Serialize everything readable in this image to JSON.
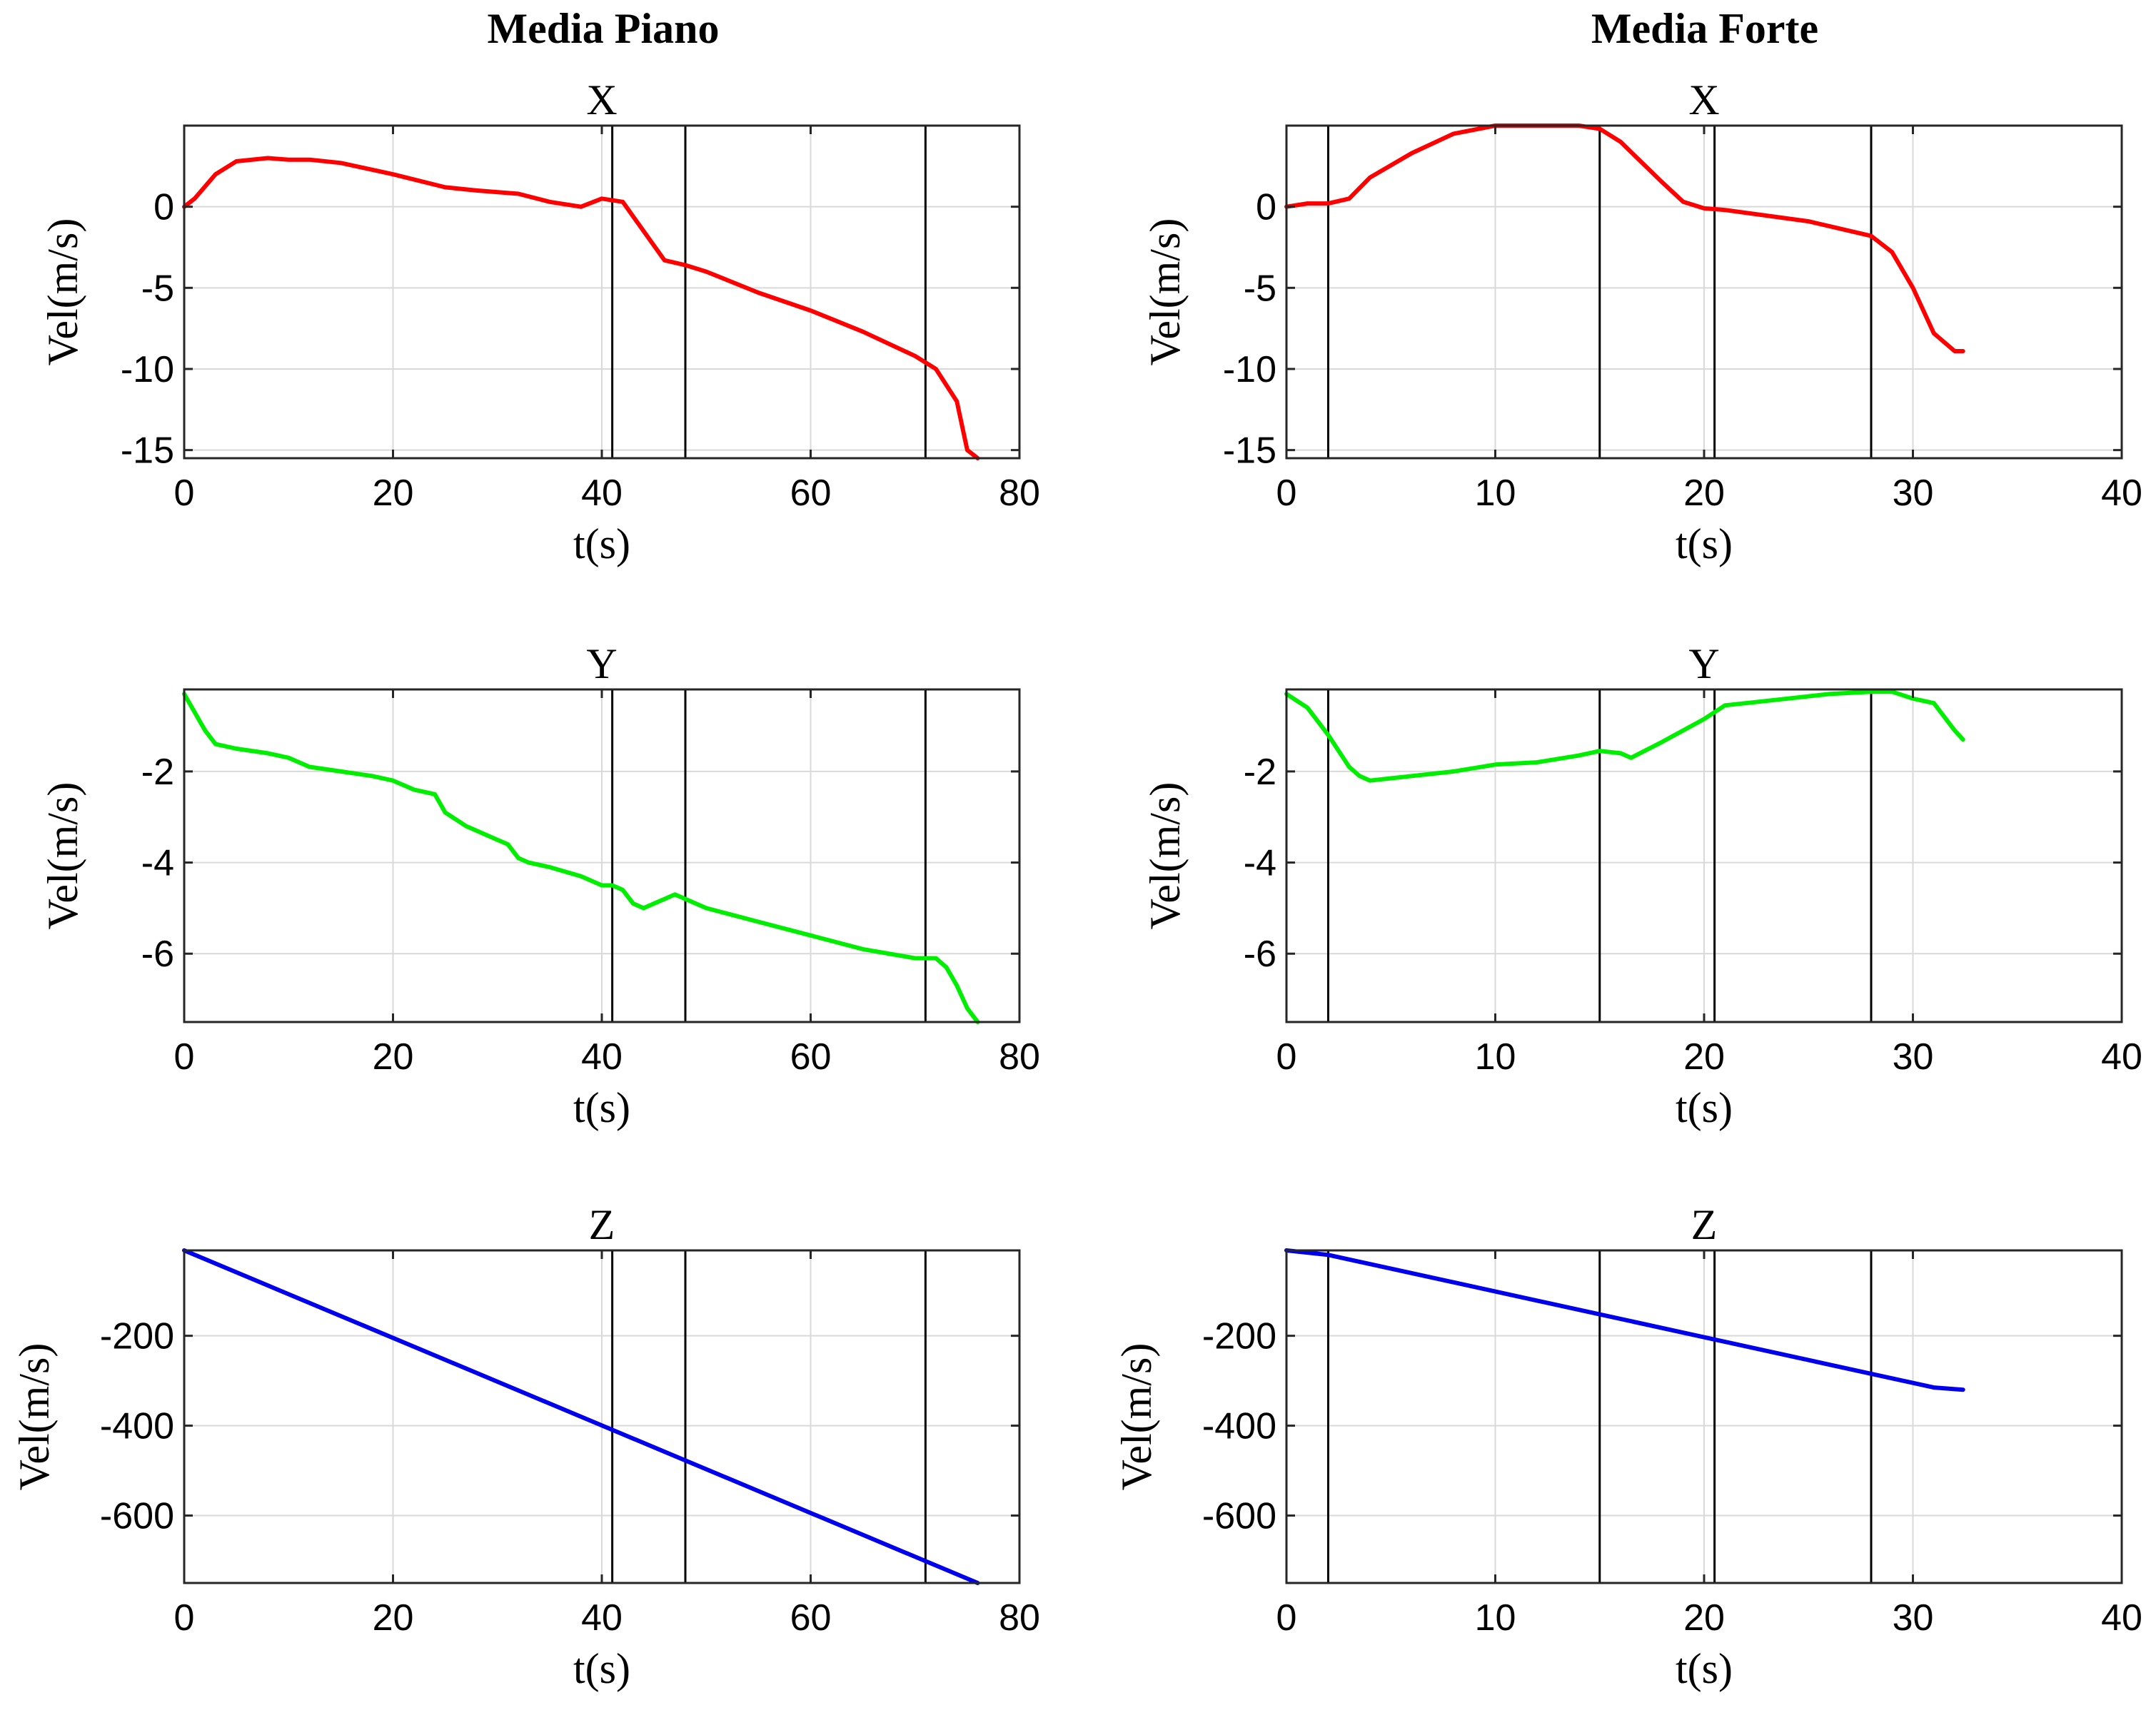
{
  "column_titles": [
    "Media Piano",
    "Media Forte"
  ],
  "chart_data": [
    {
      "type": "line",
      "title": "X",
      "xlabel": "t(s)",
      "ylabel": "Vel(m/s)",
      "xlim": [
        0,
        80
      ],
      "ylim": [
        -15.5,
        5
      ],
      "xticks": [
        0,
        20,
        40,
        60,
        80
      ],
      "yticks": [
        -15,
        -10,
        -5,
        0
      ],
      "grid": true,
      "color": "#ff0000",
      "markers": [
        41,
        48,
        71
      ],
      "series": [
        {
          "x": [
            0,
            1,
            3,
            5,
            8,
            10,
            12,
            15,
            20,
            25,
            28,
            32,
            35,
            38,
            40,
            42,
            44,
            46,
            48,
            50,
            55,
            60,
            65,
            70,
            72,
            74,
            75,
            76
          ],
          "y": [
            0,
            0.5,
            2,
            2.8,
            3,
            2.9,
            2.9,
            2.7,
            2,
            1.2,
            1,
            0.8,
            0.3,
            0,
            0.5,
            0.3,
            -1.5,
            -3.3,
            -3.6,
            -4,
            -5.3,
            -6.4,
            -7.7,
            -9.2,
            -10,
            -12,
            -15,
            -15.5
          ]
        }
      ]
    },
    {
      "type": "line",
      "title": "X",
      "xlabel": "t(s)",
      "ylabel": "Vel(m/s)",
      "xlim": [
        0,
        40
      ],
      "ylim": [
        -15.5,
        5
      ],
      "xticks": [
        0,
        10,
        20,
        30,
        40
      ],
      "yticks": [
        -15,
        -10,
        -5,
        0
      ],
      "grid": true,
      "color": "#ff0000",
      "markers": [
        2,
        15,
        20.5,
        28
      ],
      "series": [
        {
          "x": [
            0,
            1,
            2,
            3,
            4,
            6,
            8,
            10,
            12,
            14,
            15,
            16,
            18,
            19,
            20,
            21,
            25,
            28,
            29,
            30,
            31,
            32,
            32.4
          ],
          "y": [
            0,
            0.2,
            0.2,
            0.5,
            1.8,
            3.3,
            4.5,
            5,
            5,
            5,
            4.8,
            4,
            1.5,
            0.3,
            -0.1,
            -0.2,
            -0.9,
            -1.8,
            -2.8,
            -5,
            -7.8,
            -8.9,
            -8.9
          ]
        }
      ]
    },
    {
      "type": "line",
      "title": "Y",
      "xlabel": "t(s)",
      "ylabel": "Vel(m/s)",
      "xlim": [
        0,
        80
      ],
      "ylim": [
        -7.5,
        -0.2
      ],
      "xticks": [
        0,
        20,
        40,
        60,
        80
      ],
      "yticks": [
        -6,
        -4,
        -2
      ],
      "grid": true,
      "color": "#00ee00",
      "markers": [
        41,
        48,
        71
      ],
      "series": [
        {
          "x": [
            0,
            1,
            2,
            3,
            5,
            8,
            10,
            12,
            15,
            18,
            20,
            22,
            24,
            25,
            27,
            30,
            31,
            32,
            33,
            35,
            38,
            40,
            41,
            42,
            43,
            44,
            45,
            46,
            47,
            48,
            50,
            55,
            60,
            65,
            70,
            72,
            73,
            74,
            75,
            76
          ],
          "y": [
            -0.3,
            -0.7,
            -1.1,
            -1.4,
            -1.5,
            -1.6,
            -1.7,
            -1.9,
            -2,
            -2.1,
            -2.2,
            -2.4,
            -2.5,
            -2.9,
            -3.2,
            -3.5,
            -3.6,
            -3.9,
            -4,
            -4.1,
            -4.3,
            -4.5,
            -4.5,
            -4.6,
            -4.9,
            -5,
            -4.9,
            -4.8,
            -4.7,
            -4.8,
            -5,
            -5.3,
            -5.6,
            -5.9,
            -6.1,
            -6.1,
            -6.3,
            -6.7,
            -7.2,
            -7.5
          ]
        }
      ]
    },
    {
      "type": "line",
      "title": "Y",
      "xlabel": "t(s)",
      "ylabel": "Vel(m/s)",
      "xlim": [
        0,
        40
      ],
      "ylim": [
        -7.5,
        -0.2
      ],
      "xticks": [
        0,
        10,
        20,
        30,
        40
      ],
      "yticks": [
        -6,
        -4,
        -2
      ],
      "grid": true,
      "color": "#00ee00",
      "markers": [
        2,
        15,
        20.5,
        28
      ],
      "series": [
        {
          "x": [
            0,
            1,
            2,
            3,
            3.5,
            4,
            5,
            6,
            7,
            8,
            10,
            12,
            14,
            15,
            16,
            16.5,
            18,
            20,
            21,
            22,
            24,
            26,
            28,
            29,
            30,
            31,
            32,
            32.4
          ],
          "y": [
            -0.3,
            -0.6,
            -1.2,
            -1.9,
            -2.1,
            -2.2,
            -2.15,
            -2.1,
            -2.05,
            -2,
            -1.85,
            -1.8,
            -1.65,
            -1.55,
            -1.6,
            -1.7,
            -1.35,
            -0.85,
            -0.55,
            -0.5,
            -0.4,
            -0.3,
            -0.25,
            -0.25,
            -0.4,
            -0.5,
            -1.1,
            -1.3
          ]
        }
      ]
    },
    {
      "type": "line",
      "title": "Z",
      "xlabel": "t(s)",
      "ylabel": "Vel(m/s)",
      "xlim": [
        0,
        80
      ],
      "ylim": [
        -750,
        -10
      ],
      "xticks": [
        0,
        20,
        40,
        60,
        80
      ],
      "yticks": [
        -600,
        -400,
        -200
      ],
      "grid": true,
      "color": "#0000ee",
      "markers": [
        41,
        48,
        71
      ],
      "series": [
        {
          "x": [
            0,
            76
          ],
          "y": [
            -10,
            -750
          ]
        }
      ]
    },
    {
      "type": "line",
      "title": "Z",
      "xlabel": "t(s)",
      "ylabel": "Vel(m/s)",
      "xlim": [
        0,
        40
      ],
      "ylim": [
        -750,
        -10
      ],
      "xticks": [
        0,
        10,
        20,
        30,
        40
      ],
      "yticks": [
        -600,
        -400,
        -200
      ],
      "grid": true,
      "color": "#0000ee",
      "markers": [
        2,
        15,
        20.5,
        28
      ],
      "series": [
        {
          "x": [
            0,
            1,
            2,
            31,
            32.4
          ],
          "y": [
            -10,
            -15,
            -20,
            -315,
            -320
          ]
        }
      ]
    }
  ]
}
